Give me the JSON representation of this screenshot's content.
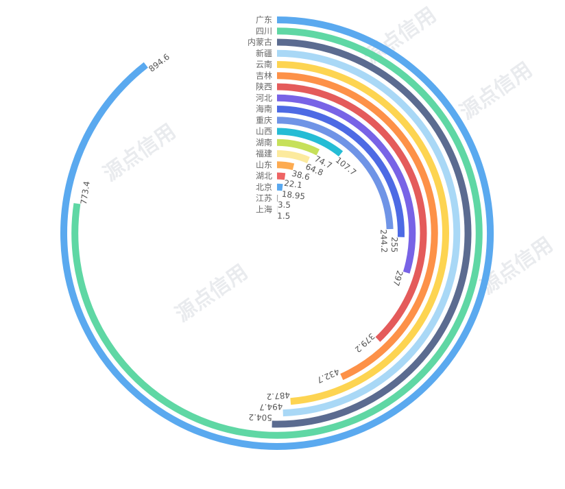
{
  "watermark": "源点信用",
  "chart_data": {
    "type": "polar-bar",
    "max_value": 1000,
    "categories": [
      "广东",
      "四川",
      "内蒙古",
      "新疆",
      "云南",
      "吉林",
      "陕西",
      "河北",
      "海南",
      "重庆",
      "山西",
      "湖南",
      "福建",
      "山东",
      "湖北",
      "北京",
      "江苏",
      "上海"
    ],
    "values": [
      894.6,
      773.4,
      504.2,
      494.7,
      487.2,
      432.7,
      379.2,
      297,
      255,
      244.2,
      107.7,
      74.7,
      64.8,
      38.6,
      22.1,
      18.95,
      3.5,
      1.5
    ],
    "value_labels": [
      "894.6",
      "773.4",
      "504.2",
      "494.7",
      "487.2",
      "432.7",
      "379.2",
      "297",
      "255",
      "244.2",
      "107.7",
      "74.7",
      "64.8",
      "38.6",
      "22.1",
      "18.95",
      "3.5",
      "1.5"
    ],
    "colors": [
      "#5aa9ef",
      "#5fd7a4",
      "#5b6b90",
      "#a9d8f6",
      "#fdd451",
      "#fd9148",
      "#e45b5b",
      "#7863e6",
      "#4d6ae4",
      "#6f94e6",
      "#25bcd5",
      "#c6e05a",
      "#fcea9e",
      "#fdab51",
      "#ee6464",
      "#59a8ef",
      "#a6a6a6",
      "#b5b5b5"
    ]
  }
}
